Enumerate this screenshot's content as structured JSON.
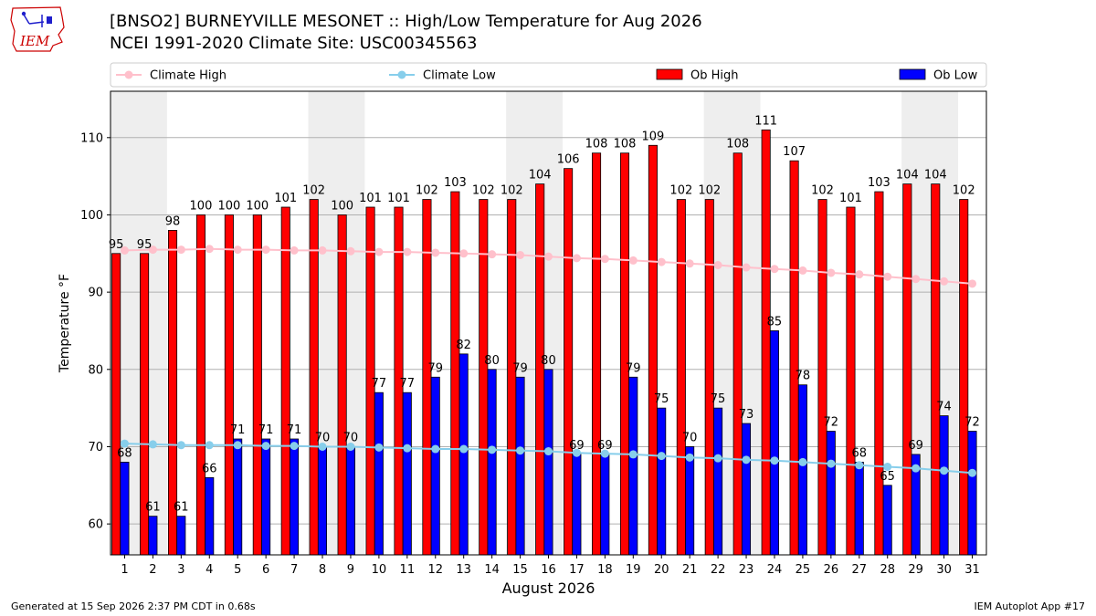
{
  "header": {
    "title": "[BNSO2] BURNEYVILLE MESONET :: High/Low Temperature for Aug 2026",
    "subtitle": "NCEI 1991-2020 Climate Site: USC00345563",
    "logo_text": "IEM"
  },
  "footer": {
    "generated": "Generated at 15 Sep 2026 2:37 PM CDT in 0.68s",
    "app": "IEM Autoplot App #17"
  },
  "colors": {
    "ob_high": "#ff0000",
    "ob_low": "#0000ff",
    "climate_high": "#ffc0cb",
    "climate_low": "#87ceeb",
    "weekend_band": "#eeeeee",
    "logo": "#cc0000"
  },
  "chart_data": {
    "type": "bar",
    "xlabel": "August 2026",
    "ylabel": "Temperature °F",
    "ylim": [
      56,
      116
    ],
    "yticks": [
      60,
      70,
      80,
      90,
      100,
      110
    ],
    "grid": "horizontal",
    "legend_position": "top",
    "categories": [
      "1",
      "2",
      "3",
      "4",
      "5",
      "6",
      "7",
      "8",
      "9",
      "10",
      "11",
      "12",
      "13",
      "14",
      "15",
      "16",
      "17",
      "18",
      "19",
      "20",
      "21",
      "22",
      "23",
      "24",
      "25",
      "26",
      "27",
      "28",
      "29",
      "30",
      "31"
    ],
    "shaded_weekend_days": [
      1,
      8,
      15,
      22,
      29
    ],
    "series": [
      {
        "name": "Ob High",
        "kind": "bar",
        "values": [
          95,
          95,
          98,
          100,
          100,
          100,
          101,
          102,
          100,
          101,
          101,
          102,
          103,
          102,
          102,
          104,
          106,
          108,
          108,
          109,
          102,
          102,
          108,
          111,
          107,
          102,
          101,
          103,
          104,
          104,
          102
        ]
      },
      {
        "name": "Ob Low",
        "kind": "bar",
        "values": [
          68,
          61,
          61,
          66,
          71,
          71,
          71,
          70,
          70,
          77,
          77,
          79,
          82,
          80,
          79,
          80,
          69,
          69,
          79,
          75,
          70,
          75,
          73,
          85,
          78,
          72,
          68,
          65,
          69,
          74,
          72
        ]
      },
      {
        "name": "Climate High",
        "kind": "line",
        "values": [
          95.4,
          95.5,
          95.5,
          95.6,
          95.5,
          95.5,
          95.4,
          95.4,
          95.3,
          95.2,
          95.2,
          95.1,
          95.0,
          94.9,
          94.8,
          94.6,
          94.4,
          94.3,
          94.1,
          93.9,
          93.7,
          93.5,
          93.2,
          93.0,
          92.8,
          92.5,
          92.3,
          92.0,
          91.7,
          91.4,
          91.1
        ]
      },
      {
        "name": "Climate Low",
        "kind": "line",
        "values": [
          70.4,
          70.3,
          70.2,
          70.2,
          70.2,
          70.1,
          70.1,
          70.0,
          70.0,
          69.9,
          69.8,
          69.7,
          69.7,
          69.6,
          69.5,
          69.4,
          69.2,
          69.1,
          69.0,
          68.8,
          68.6,
          68.5,
          68.3,
          68.2,
          68.0,
          67.8,
          67.6,
          67.4,
          67.2,
          66.9,
          66.6
        ]
      }
    ]
  }
}
